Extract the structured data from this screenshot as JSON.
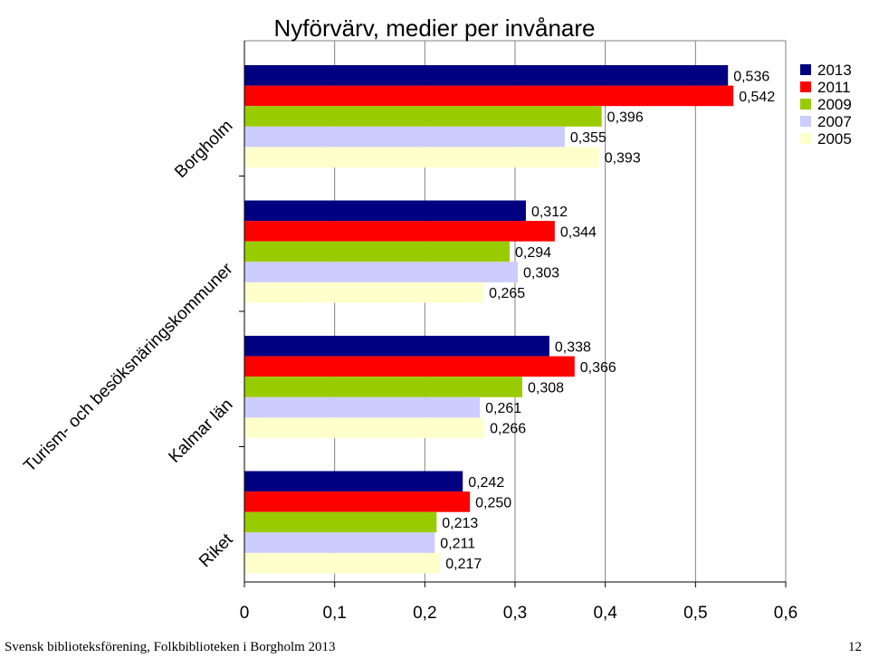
{
  "chart_data": {
    "type": "bar",
    "orientation": "horizontal",
    "title": "Nyförvärv, medier per invånare",
    "categories": [
      "Borgholm",
      "Turism- och besöksnäringskommuner",
      "Kalmar län",
      "Riket"
    ],
    "series": [
      {
        "name": "2013",
        "color": "#000080",
        "values": [
          0.536,
          0.312,
          0.338,
          0.242
        ],
        "labels": [
          "0,536",
          "0,312",
          "0,338",
          "0,242"
        ]
      },
      {
        "name": "2011",
        "color": "#ff0000",
        "values": [
          0.542,
          0.344,
          0.366,
          0.25
        ],
        "labels": [
          "0,542",
          "0,344",
          "0,366",
          "0,250"
        ]
      },
      {
        "name": "2009",
        "color": "#99cc00",
        "values": [
          0.396,
          0.294,
          0.308,
          0.213
        ],
        "labels": [
          "0,396",
          "0,294",
          "0,308",
          "0,213"
        ]
      },
      {
        "name": "2007",
        "color": "#ccccff",
        "values": [
          0.355,
          0.303,
          0.261,
          0.211
        ],
        "labels": [
          "0,355",
          "0,303",
          "0,261",
          "0,211"
        ]
      },
      {
        "name": "2005",
        "color": "#ffffcc",
        "values": [
          0.393,
          0.265,
          0.266,
          0.217
        ],
        "labels": [
          "0,393",
          "0,265",
          "0,266",
          "0,217"
        ]
      }
    ],
    "xlim": [
      0,
      0.6
    ],
    "xticks": [
      0,
      0.1,
      0.2,
      0.3,
      0.4,
      0.5,
      0.6
    ],
    "xtick_labels": [
      "0",
      "0,1",
      "0,2",
      "0,3",
      "0,4",
      "0,5",
      "0,6"
    ],
    "grid": true,
    "legend_position": "top-right"
  },
  "footer": {
    "source": "Svensk biblioteksförening, Folkbiblioteken i Borgholm 2013",
    "page_number": "12"
  }
}
